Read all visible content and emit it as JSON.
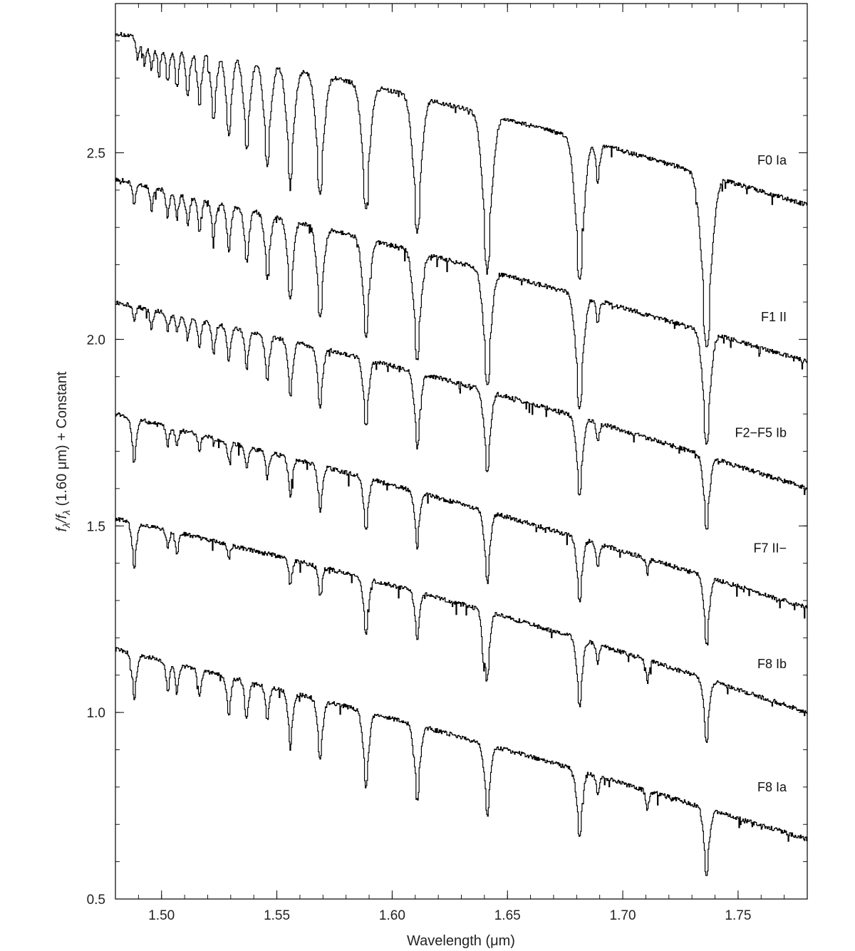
{
  "chart_data": {
    "type": "line",
    "title": "",
    "xlabel": "Wavelength (μm)",
    "ylabel_parts": [
      "f",
      "λ",
      "/f",
      "λ",
      " (1.60 μm) + Constant"
    ],
    "xlim": [
      1.48,
      1.78
    ],
    "ylim": [
      0.5,
      2.9
    ],
    "x_ticks": [
      1.5,
      1.55,
      1.6,
      1.65,
      1.7,
      1.75
    ],
    "x_tick_labels": [
      "1.50",
      "1.55",
      "1.60",
      "1.65",
      "1.70",
      "1.75"
    ],
    "y_ticks": [
      0.5,
      1.0,
      1.5,
      2.0,
      2.5
    ],
    "y_tick_labels": [
      "0.5",
      "1.0",
      "1.5",
      "2.0",
      "2.5"
    ],
    "grid": false,
    "series_start_x": 1.48,
    "series_end_x": 1.78,
    "series": [
      {
        "name": "F0 Ia",
        "label_y": 2.48,
        "start_y": 2.82,
        "end_y": 2.36,
        "absorption_lines": [
          {
            "x": 1.4895,
            "depth": 0.06
          },
          {
            "x": 1.4925,
            "depth": 0.07
          },
          {
            "x": 1.4955,
            "depth": 0.08
          },
          {
            "x": 1.4988,
            "depth": 0.09
          },
          {
            "x": 1.5025,
            "depth": 0.1
          },
          {
            "x": 1.5065,
            "depth": 0.11
          },
          {
            "x": 1.5112,
            "depth": 0.13
          },
          {
            "x": 1.5163,
            "depth": 0.15
          },
          {
            "x": 1.5224,
            "depth": 0.18
          },
          {
            "x": 1.529,
            "depth": 0.21
          },
          {
            "x": 1.5368,
            "depth": 0.24
          },
          {
            "x": 1.5457,
            "depth": 0.27
          },
          {
            "x": 1.5557,
            "depth": 0.3
          },
          {
            "x": 1.5686,
            "depth": 0.32
          },
          {
            "x": 1.5885,
            "depth": 0.33
          },
          {
            "x": 1.6107,
            "depth": 0.36
          },
          {
            "x": 1.6411,
            "depth": 0.41
          },
          {
            "x": 1.6811,
            "depth": 0.38
          },
          {
            "x": 1.689,
            "depth": 0.1
          },
          {
            "x": 1.7362,
            "depth": 0.46
          }
        ]
      },
      {
        "name": "F1 II",
        "label_y": 2.06,
        "start_y": 2.43,
        "end_y": 1.94,
        "absorption_lines": [
          {
            "x": 1.488,
            "depth": 0.06
          },
          {
            "x": 1.4955,
            "depth": 0.06
          },
          {
            "x": 1.5025,
            "depth": 0.07
          },
          {
            "x": 1.5065,
            "depth": 0.07
          },
          {
            "x": 1.5112,
            "depth": 0.08
          },
          {
            "x": 1.5163,
            "depth": 0.09
          },
          {
            "x": 1.5224,
            "depth": 0.1
          },
          {
            "x": 1.529,
            "depth": 0.12
          },
          {
            "x": 1.5368,
            "depth": 0.14
          },
          {
            "x": 1.5457,
            "depth": 0.17
          },
          {
            "x": 1.5557,
            "depth": 0.21
          },
          {
            "x": 1.5686,
            "depth": 0.24
          },
          {
            "x": 1.5885,
            "depth": 0.26
          },
          {
            "x": 1.6107,
            "depth": 0.29
          },
          {
            "x": 1.6411,
            "depth": 0.31
          },
          {
            "x": 1.6811,
            "depth": 0.3
          },
          {
            "x": 1.689,
            "depth": 0.06
          },
          {
            "x": 1.7362,
            "depth": 0.3
          }
        ]
      },
      {
        "name": "F2−F5 Ib",
        "label_y": 1.75,
        "start_y": 2.1,
        "end_y": 1.6,
        "absorption_lines": [
          {
            "x": 1.488,
            "depth": 0.04
          },
          {
            "x": 1.4955,
            "depth": 0.05
          },
          {
            "x": 1.5025,
            "depth": 0.05
          },
          {
            "x": 1.5065,
            "depth": 0.05
          },
          {
            "x": 1.5112,
            "depth": 0.06
          },
          {
            "x": 1.5163,
            "depth": 0.07
          },
          {
            "x": 1.5224,
            "depth": 0.08
          },
          {
            "x": 1.529,
            "depth": 0.09
          },
          {
            "x": 1.5368,
            "depth": 0.1
          },
          {
            "x": 1.5457,
            "depth": 0.12
          },
          {
            "x": 1.5557,
            "depth": 0.15
          },
          {
            "x": 1.5686,
            "depth": 0.16
          },
          {
            "x": 1.5885,
            "depth": 0.18
          },
          {
            "x": 1.6107,
            "depth": 0.2
          },
          {
            "x": 1.6411,
            "depth": 0.22
          },
          {
            "x": 1.6811,
            "depth": 0.21
          },
          {
            "x": 1.689,
            "depth": 0.05
          },
          {
            "x": 1.7362,
            "depth": 0.2
          }
        ]
      },
      {
        "name": "F7 II−",
        "label_y": 1.44,
        "start_y": 1.8,
        "end_y": 1.28,
        "absorption_lines": [
          {
            "x": 1.488,
            "depth": 0.12
          },
          {
            "x": 1.5025,
            "depth": 0.05
          },
          {
            "x": 1.5065,
            "depth": 0.05
          },
          {
            "x": 1.5163,
            "depth": 0.04
          },
          {
            "x": 1.529,
            "depth": 0.05
          },
          {
            "x": 1.5368,
            "depth": 0.06
          },
          {
            "x": 1.5457,
            "depth": 0.07
          },
          {
            "x": 1.5557,
            "depth": 0.1
          },
          {
            "x": 1.5686,
            "depth": 0.12
          },
          {
            "x": 1.5885,
            "depth": 0.14
          },
          {
            "x": 1.6107,
            "depth": 0.15
          },
          {
            "x": 1.6411,
            "depth": 0.19
          },
          {
            "x": 1.6811,
            "depth": 0.17
          },
          {
            "x": 1.689,
            "depth": 0.06
          },
          {
            "x": 1.7105,
            "depth": 0.04
          },
          {
            "x": 1.7362,
            "depth": 0.18
          }
        ]
      },
      {
        "name": "F8 Ib",
        "label_y": 1.13,
        "start_y": 1.52,
        "end_y": 1.0,
        "absorption_lines": [
          {
            "x": 1.488,
            "depth": 0.12
          },
          {
            "x": 1.5025,
            "depth": 0.05
          },
          {
            "x": 1.5065,
            "depth": 0.06
          },
          {
            "x": 1.529,
            "depth": 0.04
          },
          {
            "x": 1.5557,
            "depth": 0.07
          },
          {
            "x": 1.5686,
            "depth": 0.08
          },
          {
            "x": 1.5885,
            "depth": 0.15
          },
          {
            "x": 1.6107,
            "depth": 0.13
          },
          {
            "x": 1.6395,
            "depth": 0.1
          },
          {
            "x": 1.6411,
            "depth": 0.16
          },
          {
            "x": 1.6811,
            "depth": 0.18
          },
          {
            "x": 1.689,
            "depth": 0.05
          },
          {
            "x": 1.7105,
            "depth": 0.06
          },
          {
            "x": 1.7362,
            "depth": 0.17
          }
        ]
      },
      {
        "name": "F8 Ia",
        "label_y": 0.8,
        "start_y": 1.17,
        "end_y": 0.66,
        "absorption_lines": [
          {
            "x": 1.488,
            "depth": 0.12
          },
          {
            "x": 1.5025,
            "depth": 0.08
          },
          {
            "x": 1.5065,
            "depth": 0.08
          },
          {
            "x": 1.5163,
            "depth": 0.07
          },
          {
            "x": 1.529,
            "depth": 0.1
          },
          {
            "x": 1.5368,
            "depth": 0.1
          },
          {
            "x": 1.5457,
            "depth": 0.09
          },
          {
            "x": 1.5557,
            "depth": 0.14
          },
          {
            "x": 1.5686,
            "depth": 0.16
          },
          {
            "x": 1.5885,
            "depth": 0.2
          },
          {
            "x": 1.6107,
            "depth": 0.2
          },
          {
            "x": 1.6411,
            "depth": 0.19
          },
          {
            "x": 1.6811,
            "depth": 0.18
          },
          {
            "x": 1.689,
            "depth": 0.05
          },
          {
            "x": 1.7105,
            "depth": 0.05
          },
          {
            "x": 1.7362,
            "depth": 0.18
          }
        ]
      }
    ]
  }
}
